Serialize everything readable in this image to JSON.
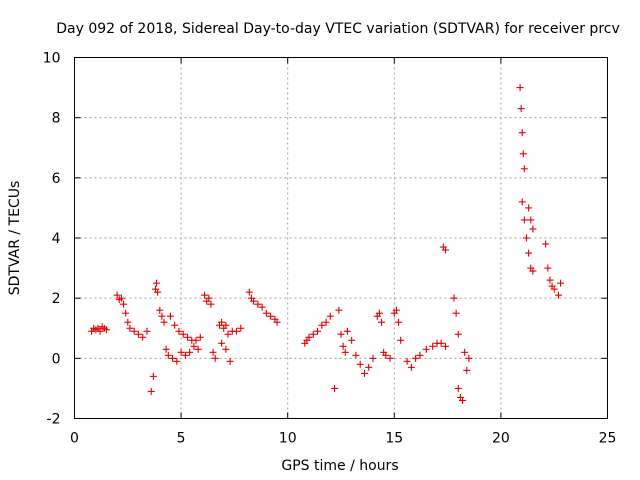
{
  "chart_data": {
    "type": "scatter",
    "title": "Day 092 of 2018, Sidereal Day-to-day VTEC variation (SDTVAR) for receiver prcv",
    "xlabel": "GPS time / hours",
    "ylabel": "SDTVAR / TECUs",
    "xlim": [
      0,
      25
    ],
    "ylim": [
      -2,
      10
    ],
    "xticks": [
      0,
      5,
      10,
      15,
      20,
      25
    ],
    "yticks": [
      -2,
      0,
      2,
      4,
      6,
      8,
      10
    ],
    "xtick_labels": [
      "0",
      "5",
      "10",
      "15",
      "20",
      "25"
    ],
    "ytick_labels": [
      "-2",
      "0",
      "2",
      "4",
      "6",
      "8",
      "10"
    ],
    "grid": true,
    "marker": "+",
    "color": "#e00000",
    "series": [
      {
        "name": "SDTVAR",
        "points": [
          [
            0.8,
            0.9
          ],
          [
            0.9,
            1.0
          ],
          [
            1.0,
            0.95
          ],
          [
            1.1,
            1.0
          ],
          [
            1.2,
            0.9
          ],
          [
            1.3,
            1.05
          ],
          [
            1.4,
            1.0
          ],
          [
            1.5,
            0.95
          ],
          [
            2.0,
            2.1
          ],
          [
            2.1,
            1.95
          ],
          [
            2.2,
            2.0
          ],
          [
            2.3,
            1.8
          ],
          [
            2.4,
            1.5
          ],
          [
            2.5,
            1.2
          ],
          [
            2.6,
            1.0
          ],
          [
            2.8,
            0.9
          ],
          [
            3.0,
            0.8
          ],
          [
            3.2,
            0.7
          ],
          [
            3.4,
            0.9
          ],
          [
            3.6,
            -1.1
          ],
          [
            3.7,
            -0.6
          ],
          [
            3.8,
            2.3
          ],
          [
            3.85,
            2.5
          ],
          [
            3.9,
            2.2
          ],
          [
            4.0,
            1.6
          ],
          [
            4.1,
            1.4
          ],
          [
            4.2,
            1.2
          ],
          [
            4.3,
            0.3
          ],
          [
            4.4,
            0.1
          ],
          [
            4.6,
            0.0
          ],
          [
            4.8,
            -0.1
          ],
          [
            4.5,
            1.4
          ],
          [
            4.7,
            1.1
          ],
          [
            4.9,
            0.9
          ],
          [
            5.1,
            0.8
          ],
          [
            5.3,
            0.7
          ],
          [
            5.5,
            0.6
          ],
          [
            5.7,
            0.6
          ],
          [
            5.9,
            0.7
          ],
          [
            5.0,
            0.2
          ],
          [
            5.2,
            0.1
          ],
          [
            5.4,
            0.2
          ],
          [
            5.6,
            0.4
          ],
          [
            5.8,
            0.3
          ],
          [
            6.1,
            2.1
          ],
          [
            6.2,
            1.9
          ],
          [
            6.3,
            2.0
          ],
          [
            6.4,
            1.8
          ],
          [
            6.5,
            0.2
          ],
          [
            6.6,
            0.0
          ],
          [
            6.8,
            1.1
          ],
          [
            6.9,
            1.2
          ],
          [
            7.0,
            1.0
          ],
          [
            7.1,
            1.1
          ],
          [
            7.2,
            0.8
          ],
          [
            7.4,
            0.9
          ],
          [
            7.6,
            0.9
          ],
          [
            7.8,
            1.0
          ],
          [
            6.9,
            0.5
          ],
          [
            7.1,
            0.3
          ],
          [
            7.3,
            -0.1
          ],
          [
            8.2,
            2.2
          ],
          [
            8.3,
            2.0
          ],
          [
            8.4,
            1.9
          ],
          [
            8.6,
            1.8
          ],
          [
            8.8,
            1.7
          ],
          [
            9.0,
            1.5
          ],
          [
            9.2,
            1.4
          ],
          [
            9.4,
            1.3
          ],
          [
            9.5,
            1.2
          ],
          [
            10.8,
            0.5
          ],
          [
            10.9,
            0.6
          ],
          [
            11.0,
            0.7
          ],
          [
            11.2,
            0.8
          ],
          [
            11.4,
            0.9
          ],
          [
            11.6,
            1.1
          ],
          [
            11.8,
            1.2
          ],
          [
            12.0,
            1.4
          ],
          [
            12.2,
            -1.0
          ],
          [
            12.4,
            1.6
          ],
          [
            12.5,
            0.8
          ],
          [
            12.6,
            0.4
          ],
          [
            12.7,
            0.2
          ],
          [
            12.8,
            0.9
          ],
          [
            13.0,
            0.6
          ],
          [
            13.2,
            0.1
          ],
          [
            13.4,
            -0.2
          ],
          [
            13.6,
            -0.5
          ],
          [
            13.8,
            -0.3
          ],
          [
            14.0,
            0.0
          ],
          [
            14.2,
            1.4
          ],
          [
            14.3,
            1.5
          ],
          [
            14.4,
            1.2
          ],
          [
            14.5,
            0.2
          ],
          [
            14.6,
            0.1
          ],
          [
            14.8,
            0.0
          ],
          [
            15.0,
            1.5
          ],
          [
            15.1,
            1.6
          ],
          [
            15.2,
            1.2
          ],
          [
            15.3,
            0.6
          ],
          [
            15.6,
            -0.1
          ],
          [
            15.8,
            -0.3
          ],
          [
            16.0,
            0.0
          ],
          [
            16.2,
            0.1
          ],
          [
            16.5,
            0.3
          ],
          [
            16.8,
            0.4
          ],
          [
            17.0,
            0.5
          ],
          [
            17.2,
            0.5
          ],
          [
            17.4,
            0.4
          ],
          [
            17.3,
            3.7
          ],
          [
            17.4,
            3.6
          ],
          [
            17.8,
            2.0
          ],
          [
            17.9,
            1.5
          ],
          [
            18.0,
            0.8
          ],
          [
            18.0,
            -1.0
          ],
          [
            18.1,
            -1.3
          ],
          [
            18.2,
            -1.4
          ],
          [
            18.3,
            0.2
          ],
          [
            18.4,
            -0.4
          ],
          [
            18.5,
            0.0
          ],
          [
            20.9,
            9.0
          ],
          [
            20.95,
            8.3
          ],
          [
            21.0,
            7.5
          ],
          [
            21.05,
            6.8
          ],
          [
            21.1,
            6.3
          ],
          [
            21.0,
            5.2
          ],
          [
            21.1,
            4.6
          ],
          [
            21.2,
            4.0
          ],
          [
            21.3,
            3.5
          ],
          [
            21.4,
            3.0
          ],
          [
            21.5,
            2.9
          ],
          [
            21.3,
            5.0
          ],
          [
            21.4,
            4.6
          ],
          [
            21.5,
            4.3
          ],
          [
            22.1,
            3.8
          ],
          [
            22.2,
            3.0
          ],
          [
            22.3,
            2.6
          ],
          [
            22.4,
            2.4
          ],
          [
            22.5,
            2.3
          ],
          [
            22.7,
            2.1
          ],
          [
            22.8,
            2.5
          ]
        ]
      }
    ]
  }
}
